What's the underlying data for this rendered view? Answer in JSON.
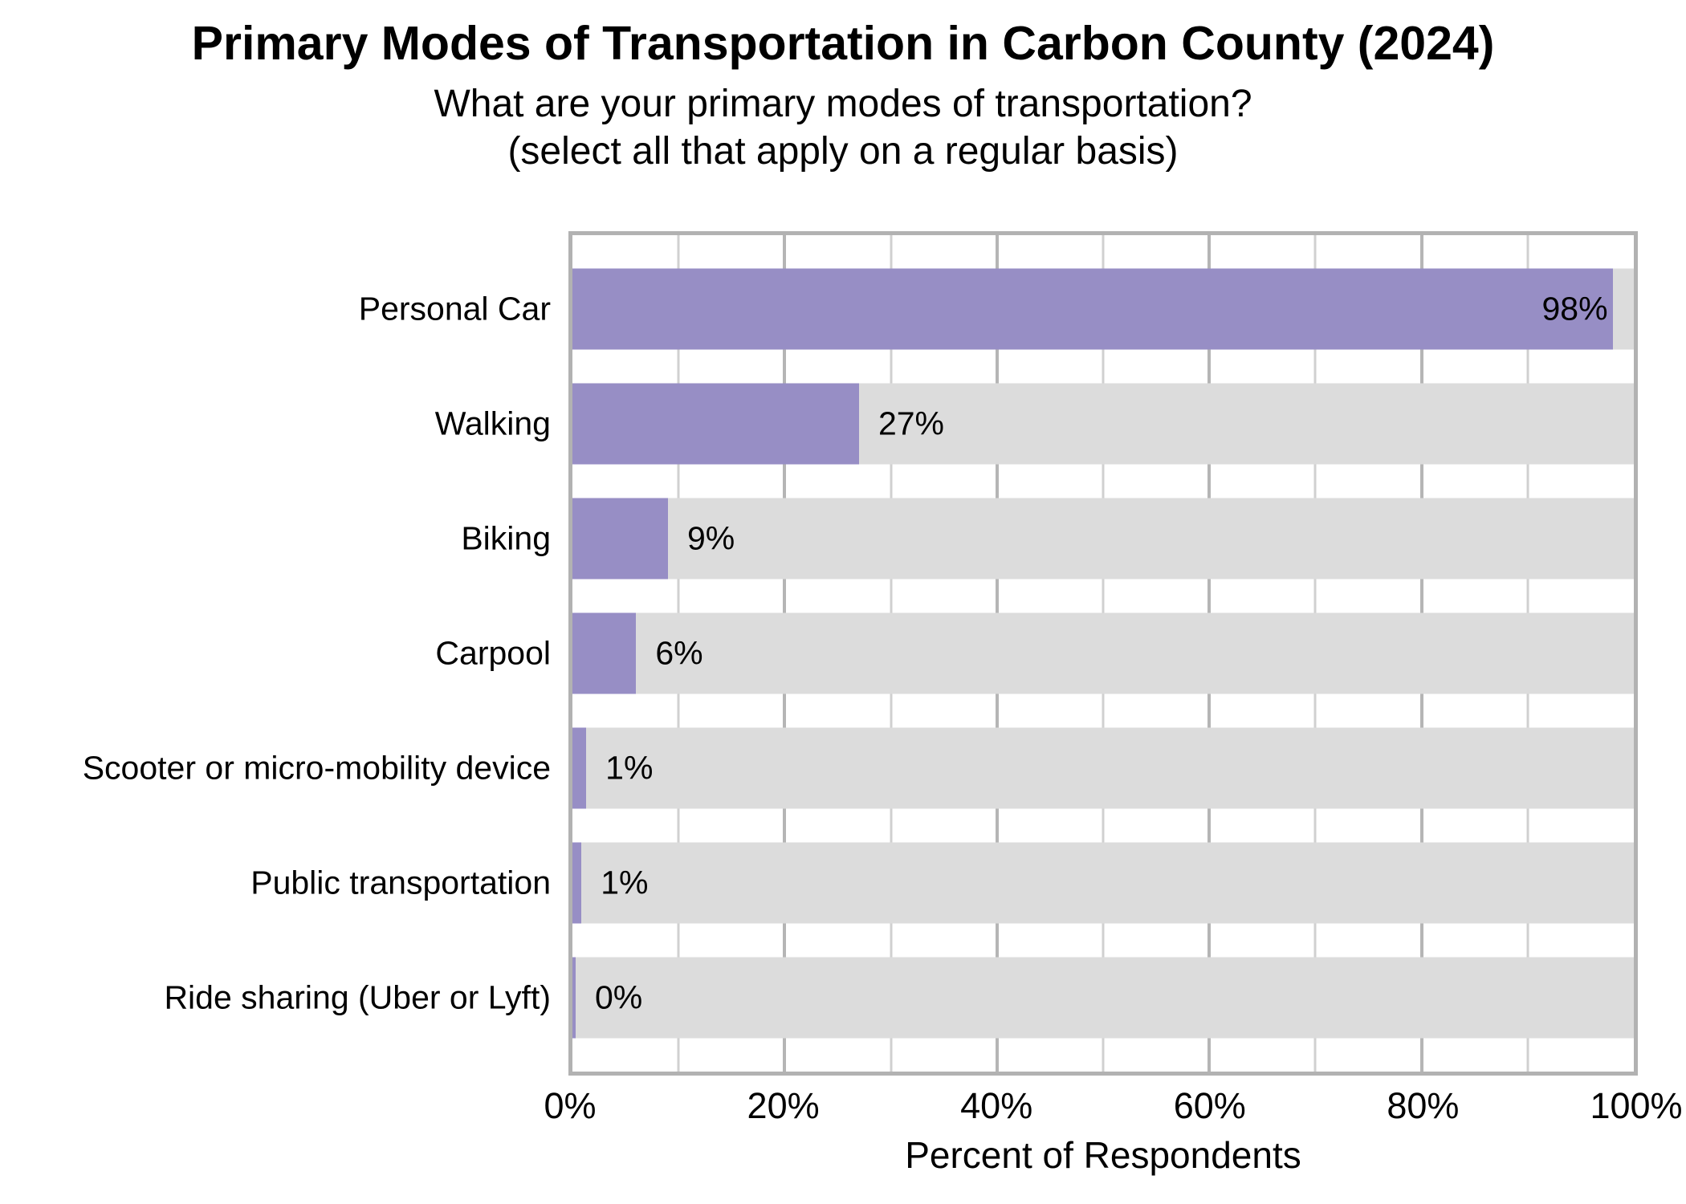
{
  "chart_data": {
    "type": "bar",
    "orientation": "horizontal",
    "title": "Primary Modes of Transportation in Carbon County (2024)",
    "subtitle_line1": "What are your primary modes of transportation?",
    "subtitle_line2": "(select all that apply on a regular basis)",
    "xlabel": "Percent of Respondents",
    "ylabel": "",
    "xlim": [
      0,
      100
    ],
    "grid": true,
    "legend": false,
    "categories": [
      "Personal Car",
      "Walking",
      "Biking",
      "Carpool",
      "Scooter or micro-mobility device",
      "Public transportation",
      "Ride sharing (Uber or Lyft)"
    ],
    "values": [
      98,
      27,
      9,
      6,
      1,
      1,
      0
    ],
    "value_labels": [
      "98%",
      "27%",
      "9%",
      "6%",
      "1%",
      "1%",
      "0%"
    ],
    "bar_render_pct": [
      98,
      27,
      9,
      6,
      1.3,
      0.85,
      0.3
    ],
    "label_inside": [
      true,
      false,
      false,
      false,
      false,
      false,
      false
    ],
    "x_ticks": [
      {
        "value": 0,
        "label": "0%"
      },
      {
        "value": 20,
        "label": "20%"
      },
      {
        "value": 40,
        "label": "40%"
      },
      {
        "value": 60,
        "label": "60%"
      },
      {
        "value": 80,
        "label": "80%"
      },
      {
        "value": 100,
        "label": "100%"
      }
    ],
    "minor_gridlines": [
      10,
      30,
      50,
      70,
      90
    ],
    "colors": {
      "bar": "#978ec5",
      "track": "#dcdcdc",
      "grid_major": "#b5b5b5",
      "grid_minor": "#d0d0d0",
      "border": "#b2b2b2",
      "background": "#ffffff",
      "text": "#000000"
    }
  }
}
